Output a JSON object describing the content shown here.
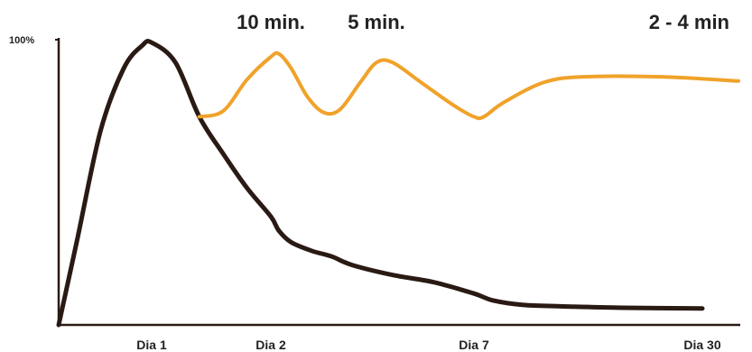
{
  "chart_data": {
    "type": "line",
    "title": "",
    "xlabel": "",
    "ylabel": "",
    "y_tick_label": "100%",
    "x_ticks": [
      {
        "label": "Dia 1",
        "x": 1
      },
      {
        "label": "Dia 2",
        "x": 2
      },
      {
        "label": "Dia 7",
        "x": 7
      },
      {
        "label": "Dia 30",
        "x": 30
      }
    ],
    "xlim": [
      0,
      32
    ],
    "ylim": [
      0,
      100
    ],
    "annotations": [
      {
        "label": "10 min.",
        "x": 2
      },
      {
        "label": "5 min.",
        "x": 4.6
      },
      {
        "label": "2 - 4 min",
        "x": 31.5
      }
    ],
    "series": [
      {
        "color": "#2a1a14",
        "points": [
          [
            0,
            0
          ],
          [
            0.2,
            30
          ],
          [
            0.45,
            68
          ],
          [
            0.7,
            90
          ],
          [
            0.9,
            98
          ],
          [
            1.0,
            99
          ],
          [
            1.2,
            92
          ],
          [
            1.4,
            73
          ],
          [
            1.6,
            60
          ],
          [
            1.8,
            48
          ],
          [
            2.0,
            38
          ],
          [
            2.2,
            33
          ],
          [
            2.5,
            29
          ],
          [
            3,
            26
          ],
          [
            3.5,
            24
          ],
          [
            4,
            21
          ],
          [
            5,
            17.5
          ],
          [
            6,
            15
          ],
          [
            7,
            11
          ],
          [
            9,
            8.5
          ],
          [
            12,
            7
          ],
          [
            16,
            6.5
          ],
          [
            22,
            6
          ],
          [
            30,
            5.8
          ]
        ]
      },
      {
        "color": "#f0a22a",
        "points": [
          [
            1.4,
            73
          ],
          [
            1.6,
            75
          ],
          [
            1.8,
            86
          ],
          [
            2.0,
            94
          ],
          [
            2.2,
            95
          ],
          [
            2.5,
            90
          ],
          [
            2.9,
            80
          ],
          [
            3.3,
            74.5
          ],
          [
            3.7,
            75.5
          ],
          [
            4.2,
            85
          ],
          [
            4.6,
            92
          ],
          [
            5.0,
            92
          ],
          [
            5.7,
            85
          ],
          [
            6.5,
            77
          ],
          [
            7.0,
            73
          ],
          [
            8,
            73
          ],
          [
            10,
            78
          ],
          [
            14,
            85
          ],
          [
            18,
            87
          ],
          [
            26,
            87
          ],
          [
            32,
            85.5
          ]
        ]
      }
    ]
  }
}
